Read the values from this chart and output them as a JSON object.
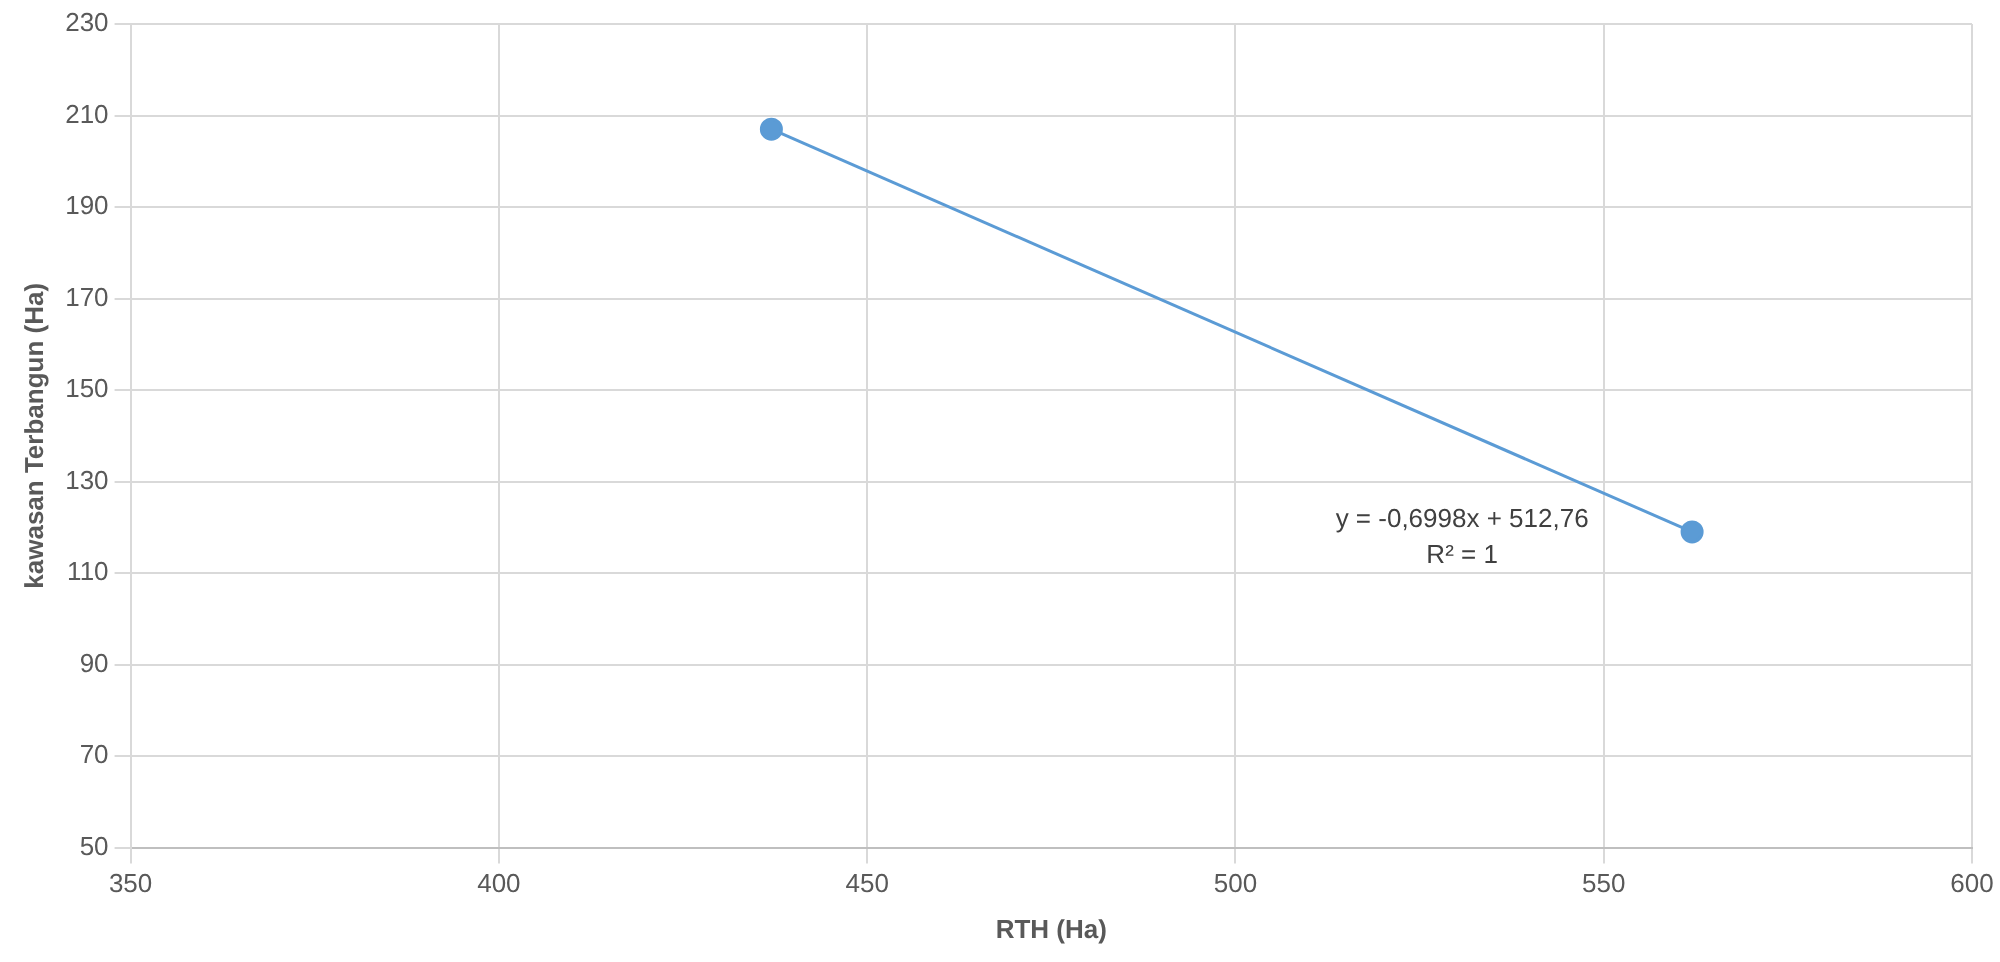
{
  "chart_data": {
    "type": "scatter",
    "xlabel": "RTH (Ha)",
    "ylabel": "kawasan Terbangun (Ha)",
    "xlim": [
      350,
      600
    ],
    "xticks": [
      350,
      400,
      450,
      500,
      550,
      600
    ],
    "ylim": [
      50,
      230
    ],
    "yticks": [
      50,
      70,
      90,
      110,
      130,
      150,
      170,
      190,
      210,
      230
    ],
    "grid": true,
    "legend": false,
    "marker": "circle",
    "series": [
      {
        "type": "line",
        "color": "#5b9bd5",
        "x": [
          437,
          562
        ],
        "values": [
          207,
          119
        ],
        "line_style": "solid"
      }
    ],
    "annotations": [
      "y = -0,6998x + 512,76",
      "R² = 1"
    ]
  }
}
